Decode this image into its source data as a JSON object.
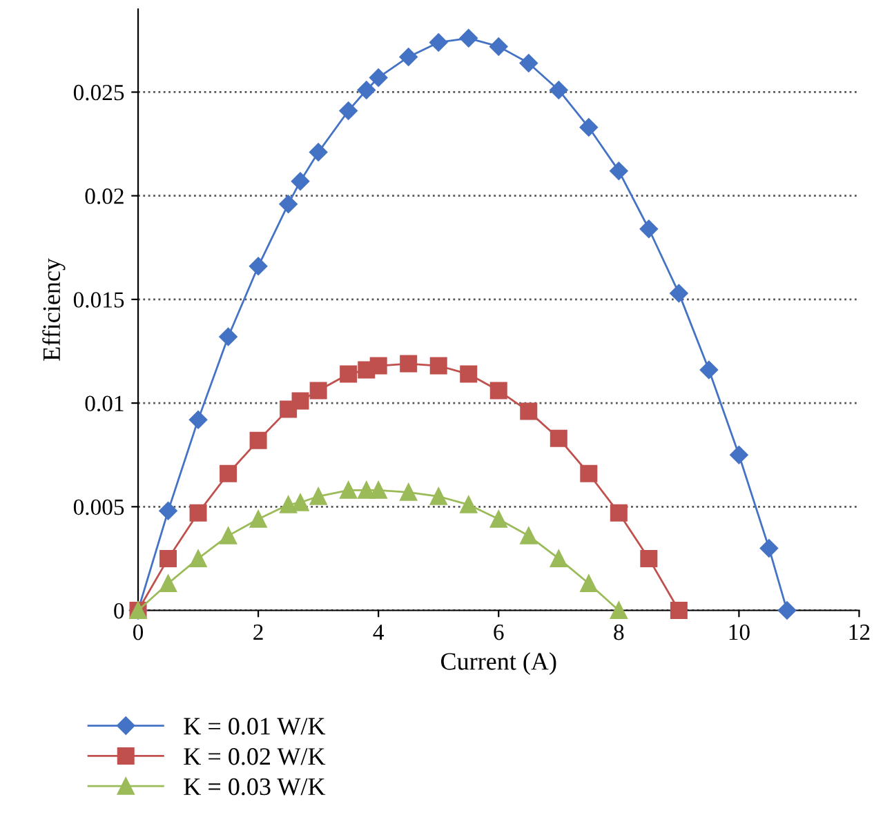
{
  "chart_data": {
    "type": "line",
    "xlabel": "Current (A)",
    "ylabel": "Efficiency",
    "xlim": [
      0,
      12
    ],
    "xticks": [
      0,
      2,
      4,
      6,
      8,
      10,
      12
    ],
    "ylim": [
      0,
      0.029
    ],
    "yticks": [
      0,
      0.005,
      0.01,
      0.015,
      0.02,
      0.025
    ],
    "grid": "y",
    "legend": "bottom",
    "series": [
      {
        "name": "K = 0.01 W/K",
        "color": "#4472c4",
        "marker": "diamond",
        "x": [
          0,
          0.5,
          1,
          1.5,
          2,
          2.5,
          2.7,
          3,
          3.5,
          3.8,
          4,
          4.5,
          5,
          5.5,
          6,
          6.5,
          7,
          7.5,
          8,
          8.5,
          9,
          9.5,
          10,
          10.5,
          10.8
        ],
        "values": [
          0,
          0.0048,
          0.0092,
          0.0132,
          0.0166,
          0.0196,
          0.0207,
          0.0221,
          0.0241,
          0.0251,
          0.0257,
          0.0267,
          0.0274,
          0.0276,
          0.0272,
          0.0264,
          0.0251,
          0.0233,
          0.0212,
          0.0184,
          0.0153,
          0.0116,
          0.0075,
          0.003,
          0
        ]
      },
      {
        "name": "K = 0.02 W/K",
        "color": "#c0504d",
        "marker": "square",
        "x": [
          0,
          0.5,
          1,
          1.5,
          2,
          2.5,
          2.7,
          3,
          3.5,
          3.8,
          4,
          4.5,
          5,
          5.5,
          6,
          6.5,
          7,
          7.5,
          8,
          8.5,
          9
        ],
        "values": [
          0,
          0.0025,
          0.0047,
          0.0066,
          0.0082,
          0.0097,
          0.0101,
          0.0106,
          0.0114,
          0.0116,
          0.0118,
          0.0119,
          0.0118,
          0.0114,
          0.0106,
          0.0096,
          0.0083,
          0.0066,
          0.0047,
          0.0025,
          0
        ]
      },
      {
        "name": "K = 0.03 W/K",
        "color": "#9bbb59",
        "marker": "triangle",
        "x": [
          0,
          0.5,
          1,
          1.5,
          2,
          2.5,
          2.7,
          3,
          3.5,
          3.8,
          4,
          4.5,
          5,
          5.5,
          6,
          6.5,
          7,
          7.5,
          8
        ],
        "values": [
          0,
          0.0013,
          0.0025,
          0.0036,
          0.0044,
          0.0051,
          0.0052,
          0.0055,
          0.0058,
          0.0058,
          0.0058,
          0.0057,
          0.0055,
          0.0051,
          0.0044,
          0.0036,
          0.0025,
          0.0013,
          0
        ]
      }
    ]
  }
}
